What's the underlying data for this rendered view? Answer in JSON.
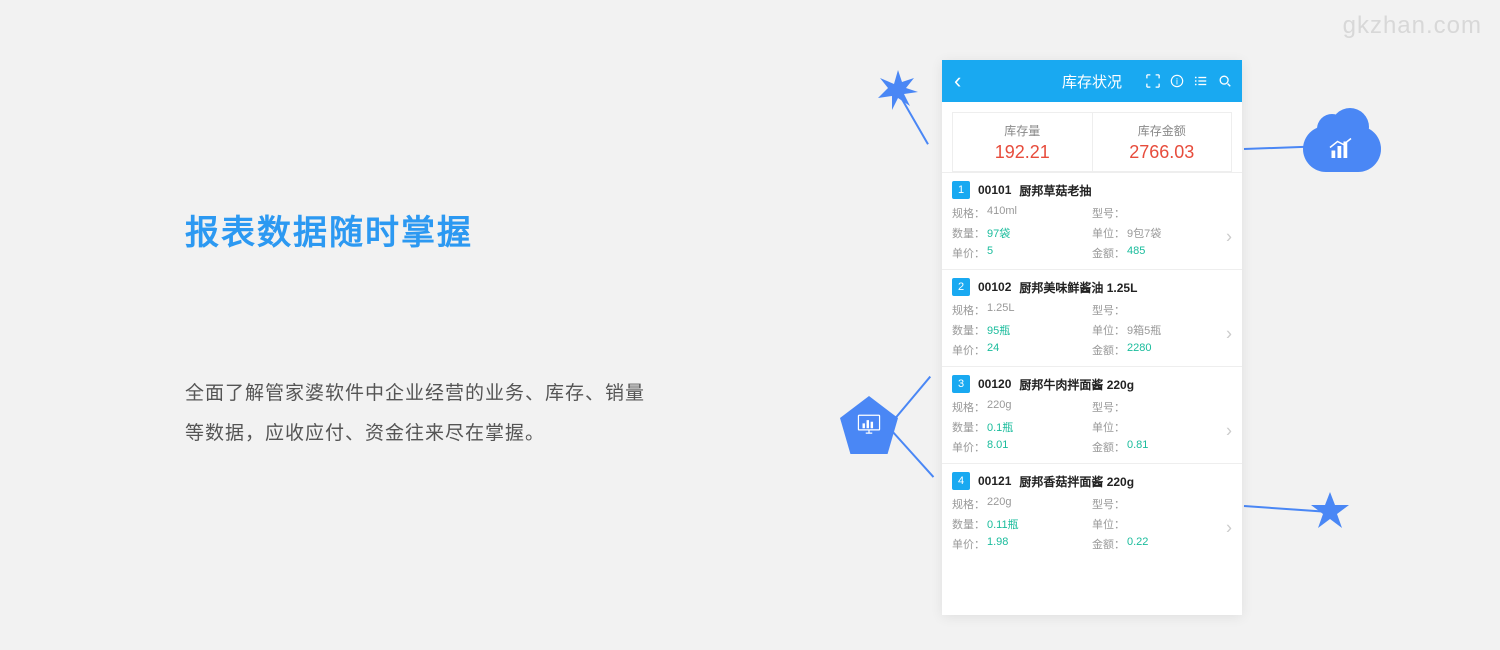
{
  "watermark": "gkzhan.com",
  "title": "报表数据随时掌握",
  "description": "全面了解管家婆软件中企业经营的业务、库存、销量等数据，应收应付、资金往来尽在掌握。",
  "colors": {
    "bg": "#f2f2f2",
    "accent": "#4a87f5",
    "phone_header": "#19a9f1",
    "summary_value": "#e74c3c",
    "teal": "#1abc9c"
  },
  "phone": {
    "title": "库存状况",
    "summary": {
      "col1": {
        "label": "库存量",
        "value": "192.21"
      },
      "col2": {
        "label": "库存金额",
        "value": "2766.03"
      }
    },
    "fields": {
      "spec": "规格：",
      "model": "型号：",
      "qty": "数量：",
      "unit": "单位：",
      "price": "单价：",
      "amount": "金额："
    },
    "items": [
      {
        "num": "1",
        "code": "00101",
        "name": "厨邦草菇老抽",
        "spec": "410ml",
        "model": "",
        "qty": "97袋",
        "unit": "9包7袋",
        "price": "5",
        "amount": "485"
      },
      {
        "num": "2",
        "code": "00102",
        "name": "厨邦美味鲜酱油 1.25L",
        "spec": "1.25L",
        "model": "",
        "qty": "95瓶",
        "unit": "9箱5瓶",
        "price": "24",
        "amount": "2280"
      },
      {
        "num": "3",
        "code": "00120",
        "name": "厨邦牛肉拌面酱 220g",
        "spec": "220g",
        "model": "",
        "qty": "0.1瓶",
        "unit": "",
        "price": "8.01",
        "amount": "0.81"
      },
      {
        "num": "4",
        "code": "00121",
        "name": "厨邦香菇拌面酱 220g",
        "spec": "220g",
        "model": "",
        "qty": "0.11瓶",
        "unit": "",
        "price": "1.98",
        "amount": "0.22"
      }
    ]
  }
}
